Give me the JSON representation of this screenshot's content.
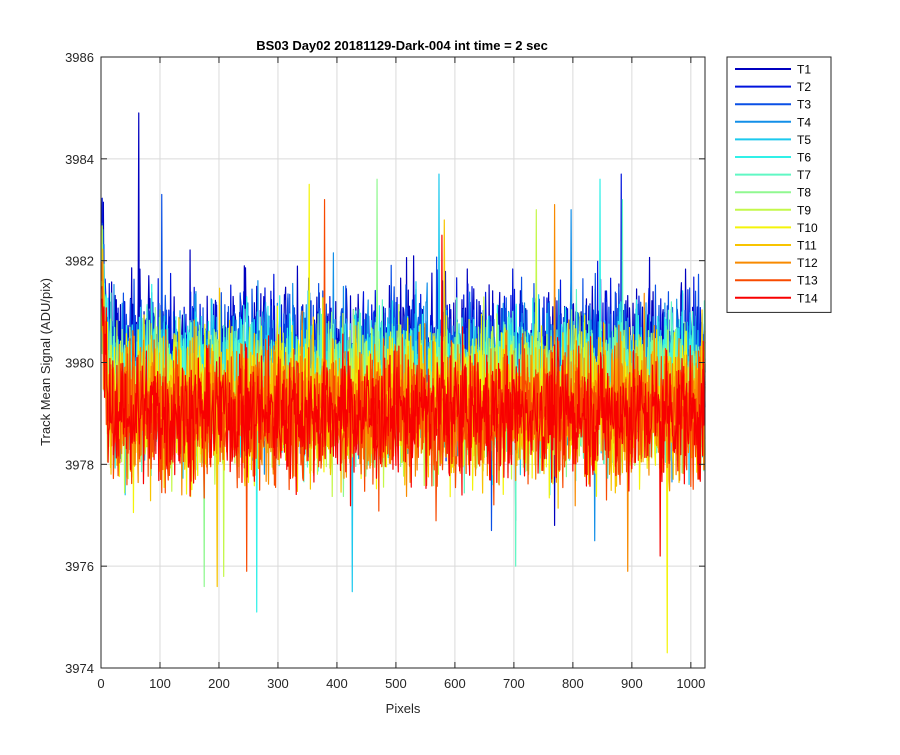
{
  "chart_data": {
    "type": "line",
    "title": "BS03 Day02 20181129-Dark-004 int time = 2 sec",
    "xlabel": "Pixels",
    "ylabel": "Track Mean Signal (ADU/pix)",
    "xlim": [
      0,
      1024
    ],
    "ylim": [
      3974,
      3986
    ],
    "xticks": [
      0,
      100,
      200,
      300,
      400,
      500,
      600,
      700,
      800,
      900,
      1000
    ],
    "yticks": [
      3974,
      3976,
      3978,
      3980,
      3982,
      3984,
      3986
    ],
    "grid": true,
    "legend_position": "outside-right",
    "series": [
      {
        "name": "T1",
        "color": "#0000bf",
        "mean": 3980.2,
        "spread": 1.25,
        "min": 3976.8,
        "max": 3984.9
      },
      {
        "name": "T2",
        "color": "#0014dd",
        "mean": 3980.0,
        "spread": 1.25,
        "min": 3976.9,
        "max": 3983.7
      },
      {
        "name": "T3",
        "color": "#0a50e6",
        "mean": 3980.0,
        "spread": 1.25,
        "min": 3976.7,
        "max": 3983.3
      },
      {
        "name": "T4",
        "color": "#138fe8",
        "mean": 3979.8,
        "spread": 1.25,
        "min": 3976.5,
        "max": 3983.0
      },
      {
        "name": "T5",
        "color": "#1cc9ee",
        "mean": 3979.6,
        "spread": 1.25,
        "min": 3975.5,
        "max": 3983.7
      },
      {
        "name": "T6",
        "color": "#30f0e8",
        "mean": 3979.6,
        "spread": 1.25,
        "min": 3975.1,
        "max": 3983.6
      },
      {
        "name": "T7",
        "color": "#60f8c4",
        "mean": 3979.5,
        "spread": 1.25,
        "min": 3976.0,
        "max": 3983.2
      },
      {
        "name": "T8",
        "color": "#90f890",
        "mean": 3979.4,
        "spread": 1.25,
        "min": 3975.6,
        "max": 3983.6
      },
      {
        "name": "T9",
        "color": "#c4f84a",
        "mean": 3979.3,
        "spread": 1.25,
        "min": 3975.8,
        "max": 3983.0
      },
      {
        "name": "T10",
        "color": "#f4f40a",
        "mean": 3979.2,
        "spread": 1.25,
        "min": 3974.3,
        "max": 3983.5
      },
      {
        "name": "T11",
        "color": "#f8c400",
        "mean": 3979.2,
        "spread": 1.2,
        "min": 3975.6,
        "max": 3982.8
      },
      {
        "name": "T12",
        "color": "#f88a00",
        "mean": 3979.1,
        "spread": 1.2,
        "min": 3975.9,
        "max": 3983.1
      },
      {
        "name": "T13",
        "color": "#f84a00",
        "mean": 3979.0,
        "spread": 1.2,
        "min": 3975.9,
        "max": 3983.2
      },
      {
        "name": "T14",
        "color": "#f80000",
        "mean": 3979.0,
        "spread": 1.1,
        "min": 3976.2,
        "max": 3982.5
      }
    ]
  }
}
